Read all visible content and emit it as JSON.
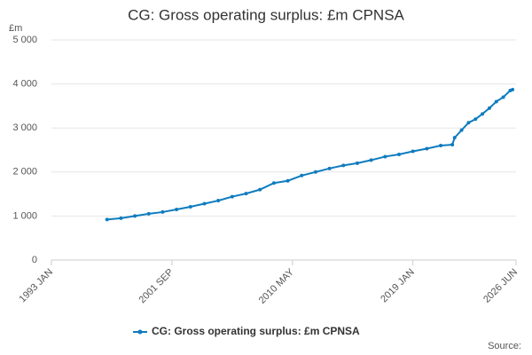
{
  "chart_data": {
    "type": "line",
    "title": "CG: Gross operating surplus: £m CPNSA",
    "y_label": "£m",
    "source": "Source:",
    "x": [
      "1997 JAN",
      "1998 JAN",
      "1999 JAN",
      "2000 JAN",
      "2001 JAN",
      "2002 JAN",
      "2003 JAN",
      "2004 JAN",
      "2005 JAN",
      "2006 JAN",
      "2007 JAN",
      "2008 JAN",
      "2009 JAN",
      "2010 JAN",
      "2011 JAN",
      "2012 JAN",
      "2013 JAN",
      "2014 JAN",
      "2015 JAN",
      "2016 JAN",
      "2017 JAN",
      "2018 JAN",
      "2019 JAN",
      "2020 JAN",
      "2021 JAN",
      "2021 NOV",
      "2022 JAN",
      "2022 JUL",
      "2023 JAN",
      "2023 JUL",
      "2024 JAN",
      "2024 JUL",
      "2025 JAN",
      "2025 JUL",
      "2026 JAN",
      "2026 MAR"
    ],
    "series": [
      {
        "name": "CG: Gross operating surplus: £m CPNSA",
        "color": "#0f7cbf",
        "values": [
          920,
          950,
          1000,
          1050,
          1090,
          1150,
          1210,
          1280,
          1350,
          1440,
          1510,
          1600,
          1750,
          1800,
          1920,
          2000,
          2080,
          2150,
          2200,
          2270,
          2350,
          2400,
          2470,
          2530,
          2600,
          2620,
          2780,
          2950,
          3120,
          3200,
          3320,
          3450,
          3600,
          3700,
          3850,
          3870
        ]
      }
    ],
    "xlim": [
      "1993 JAN",
      "2026 JUN"
    ],
    "xticks": [
      "1993 JAN",
      "2001 SEP",
      "2010 MAY",
      "2019 JAN",
      "2026 JUN"
    ],
    "ylim": [
      0,
      5000
    ],
    "yticks": [
      0,
      {
        "value": 1000,
        "label": "1 000"
      },
      {
        "value": 2000,
        "label": "2 000"
      },
      {
        "value": 3000,
        "label": "3 000"
      },
      {
        "value": 4000,
        "label": "4 000"
      },
      {
        "value": 5000,
        "label": "5 000"
      }
    ],
    "grid": true
  }
}
